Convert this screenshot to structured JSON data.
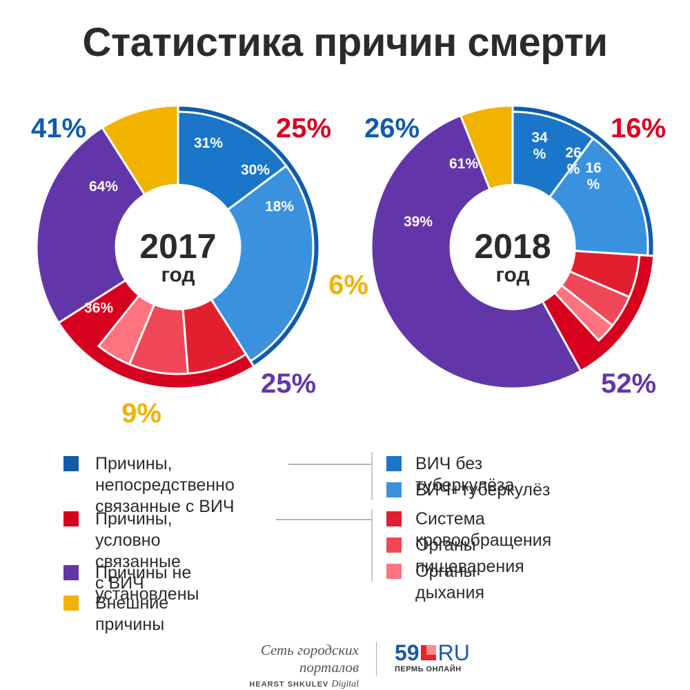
{
  "title": "Статистика причин смерти",
  "colors": {
    "hiv_related": "#0f5cab",
    "hiv_no_tb": "#1976c9",
    "hiv_tb": "#3a92de",
    "conditional": "#d7001f",
    "circulatory": "#e21f2e",
    "digestive": "#f04857",
    "respiratory": "#ff737e",
    "unknown": "#6236a8",
    "external": "#f2b200"
  },
  "chart_data": [
    {
      "type": "pie",
      "center_label": "2017",
      "center_sub": "год",
      "outer": [
        {
          "category": "Причины, непосредственно связанные с ВИЧ",
          "value": 41,
          "label": "41%",
          "color": "#0f5cab"
        },
        {
          "category": "Причины, условно связанные с ВИЧ",
          "value": 25,
          "label": "25%",
          "color": "#d7001f"
        },
        {
          "category": "Причины не установлены",
          "value": 25,
          "label": "25%",
          "color": "#6236a8"
        },
        {
          "category": "Внешние причины",
          "value": 9,
          "label": "9%",
          "color": "#f2b200"
        }
      ],
      "hiv_breakdown": [
        {
          "category": "ВИЧ+туберкулёз",
          "value": 64,
          "label": "64%",
          "color": "#3a92de"
        },
        {
          "category": "ВИЧ без туберкулёза",
          "value": 36,
          "label": "36%",
          "color": "#1976c9"
        }
      ],
      "conditional_breakdown": [
        {
          "category": "Система кровообращения",
          "value": 31,
          "label": "31%",
          "color": "#e21f2e"
        },
        {
          "category": "Органы пищеварения",
          "value": 30,
          "label": "30%",
          "color": "#f04857"
        },
        {
          "category": "Органы дыхания",
          "value": 18,
          "label": "18%",
          "color": "#ff737e"
        }
      ]
    },
    {
      "type": "pie",
      "center_label": "2018",
      "center_sub": "год",
      "outer": [
        {
          "category": "Причины, непосредственно связанные с ВИЧ",
          "value": 26,
          "label": "26%",
          "color": "#0f5cab"
        },
        {
          "category": "Причины, условно связанные с ВИЧ",
          "value": 16,
          "label": "16%",
          "color": "#d7001f"
        },
        {
          "category": "Причины не установлены",
          "value": 52,
          "label": "52%",
          "color": "#6236a8"
        },
        {
          "category": "Внешние причины",
          "value": 6,
          "label": "6%",
          "color": "#f2b200"
        }
      ],
      "hiv_breakdown": [
        {
          "category": "ВИЧ+туберкулёз",
          "value": 61,
          "label": "61%",
          "color": "#3a92de"
        },
        {
          "category": "ВИЧ без туберкулёза",
          "value": 39,
          "label": "39%",
          "color": "#1976c9"
        }
      ],
      "conditional_breakdown": [
        {
          "category": "Система кровообращения",
          "value": 34,
          "label": "34\n%",
          "color": "#e21f2e"
        },
        {
          "category": "Органы пищеварения",
          "value": 26,
          "label": "26\n%",
          "color": "#f04857"
        },
        {
          "category": "Органы дыхания",
          "value": 16,
          "label": "16\n%",
          "color": "#ff737e"
        }
      ]
    }
  ],
  "legend": {
    "main": [
      {
        "label": "Причины, непосредственно\nсвязанные с ВИЧ",
        "color": "#0f5cab"
      },
      {
        "label": "Причины, условно\nсвязанные с ВИЧ",
        "color": "#d7001f"
      },
      {
        "label": "Причины не установлены",
        "color": "#6236a8"
      },
      {
        "label": "Внешние причины",
        "color": "#f2b200"
      }
    ],
    "sub": [
      {
        "label": "ВИЧ без туберкулёза",
        "color": "#1976c9"
      },
      {
        "label": "ВИЧ+туберкулёз",
        "color": "#3a92de"
      },
      {
        "label": "Система кровообращения",
        "color": "#e21f2e"
      },
      {
        "label": "Органы пищеварения",
        "color": "#f04857"
      },
      {
        "label": "Органы дыхания",
        "color": "#ff737e"
      }
    ]
  },
  "footer": {
    "network": "Сеть городских порталов",
    "publisher_bold": "HEARST SHKULEV",
    "publisher_italic": "Digital",
    "logo_num": "59",
    "logo_ru": "RU",
    "logo_sub": "ПЕРМЬ ОНЛАЙН"
  }
}
